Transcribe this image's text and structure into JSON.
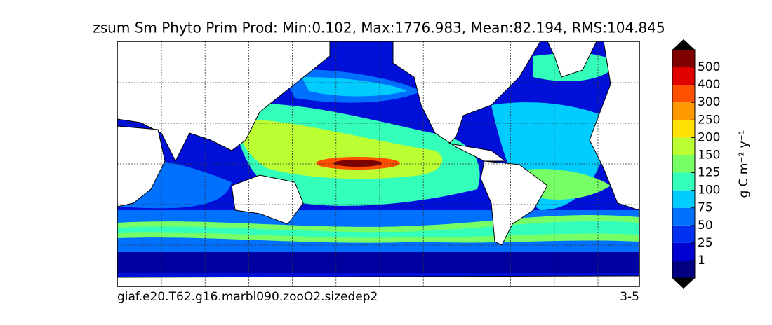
{
  "title": "zsum Sm Phyto Prim Prod: Min:0.102, Max:1776.983, Mean:82.194, RMS:104.845",
  "caption_left": "giaf.e20.T62.g16.marbl090.zooO2.sizedep2",
  "caption_right": "3-5",
  "colorbar": {
    "label": "g C m⁻² y⁻¹",
    "levels": [
      1,
      25,
      50,
      75,
      100,
      125,
      150,
      200,
      250,
      300,
      400,
      500
    ],
    "colors": [
      "#000080",
      "#0000d0",
      "#0030f0",
      "#0070ff",
      "#00ccff",
      "#33ffbb",
      "#77ff66",
      "#bbff33",
      "#ffe000",
      "#ff9900",
      "#ff5000",
      "#e00000",
      "#800000"
    ],
    "extend_color": "#000000"
  }
}
